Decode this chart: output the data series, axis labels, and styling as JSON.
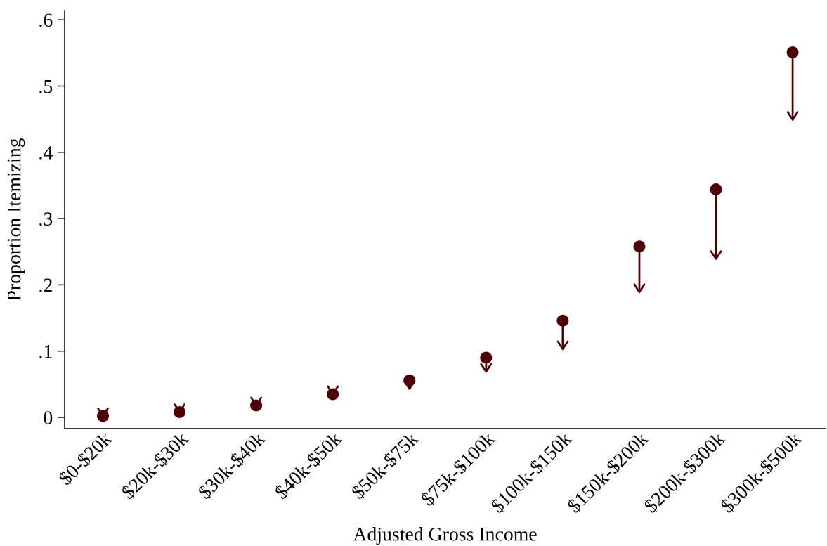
{
  "chart_data": {
    "type": "scatter",
    "categories": [
      "$0-$20k",
      "$20k-$30k",
      "$30k-$40k",
      "$40k-$50k",
      "$50k-$75k",
      "$75k-$100k",
      "$100k-$150k",
      "$150k-$200k",
      "$200k-$300k",
      "$300k-$500k"
    ],
    "values": [
      0.002,
      0.008,
      0.018,
      0.035,
      0.056,
      0.09,
      0.146,
      0.258,
      0.344,
      0.551
    ],
    "errors": [
      [
        0.002,
        0.002
      ],
      [
        0.008,
        0.008
      ],
      [
        0.018,
        0.018
      ],
      [
        0.035,
        0.035
      ],
      [
        0.043,
        0.056
      ],
      [
        0.069,
        0.09
      ],
      [
        0.103,
        0.146
      ],
      [
        0.189,
        0.258
      ],
      [
        0.239,
        0.344
      ],
      [
        0.449,
        0.551
      ]
    ],
    "color": "#4f0006",
    "marker": "circle",
    "xlabel": "Adjusted Gross Income",
    "ylabel": "Proportion Itemizing",
    "ylim": [
      -0.017,
      0.614
    ],
    "yticks": [
      0,
      {
        "value": 0.1,
        "label": ".1"
      },
      {
        "value": 0.2,
        "label": ".2"
      },
      {
        "value": 0.3,
        "label": ".3"
      },
      {
        "value": 0.4,
        "label": ".4"
      },
      {
        "value": 0.5,
        "label": ".5"
      },
      {
        "value": 0.6,
        "label": ".6"
      }
    ]
  }
}
